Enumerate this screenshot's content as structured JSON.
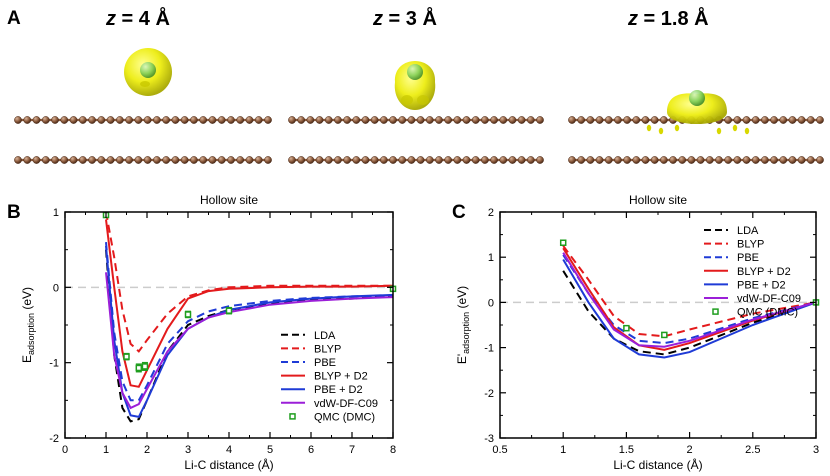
{
  "panels": {
    "a": {
      "letter": "A",
      "titles": [
        {
          "var": "z",
          "rest": " = 4 Å"
        },
        {
          "var": "z",
          "rest": " = 3 Å"
        },
        {
          "var": "z",
          "rest": " = 1.8 Å"
        }
      ]
    },
    "b": {
      "letter": "B"
    },
    "c": {
      "letter": "C"
    }
  },
  "colors": {
    "LDA": "#000000",
    "BLYP": "#e31a1c",
    "PBE": "#1f3bd6",
    "BLYP + D2": "#e31a1c",
    "PBE + D2": "#1f3bd6",
    "vdW-DF-C09": "#9b1fd8",
    "QMC": "#1f9e1f",
    "density": "#e6e600",
    "carbon": "#8b5a3c",
    "lithium": "#7ccd5a"
  },
  "chart_data": [
    {
      "type": "line",
      "title": "Hollow site",
      "xlabel": "Li-C distance (Å)",
      "ylabel_main": "E",
      "ylabel_sub": "adsorption",
      "ylabel_unit": " (eV)",
      "xlim": [
        0,
        8
      ],
      "ylim": [
        -2,
        1
      ],
      "xticks": [
        0,
        1,
        2,
        3,
        4,
        5,
        6,
        7,
        8
      ],
      "yticks": [
        -2,
        -1,
        0,
        1
      ],
      "legend": "lower-right",
      "reference_line": 0,
      "series": [
        {
          "name": "LDA",
          "dash": true,
          "x": [
            1.0,
            1.2,
            1.4,
            1.6,
            1.8,
            2.0,
            2.5,
            3.0,
            3.5,
            4.0,
            5.0,
            6.0,
            7.0,
            8.0
          ],
          "y": [
            0.5,
            -0.9,
            -1.6,
            -1.78,
            -1.75,
            -1.5,
            -0.85,
            -0.5,
            -0.38,
            -0.3,
            -0.22,
            -0.17,
            -0.15,
            -0.12
          ]
        },
        {
          "name": "BLYP",
          "dash": true,
          "x": [
            1.0,
            1.2,
            1.4,
            1.6,
            1.8,
            2.0,
            2.5,
            3.0,
            3.5,
            4.0,
            5.0,
            6.0,
            7.0,
            8.0
          ],
          "y": [
            1.0,
            0.4,
            -0.3,
            -0.75,
            -0.85,
            -0.7,
            -0.35,
            -0.12,
            -0.04,
            0.0,
            0.02,
            0.02,
            0.02,
            0.02
          ]
        },
        {
          "name": "PBE",
          "dash": true,
          "x": [
            1.0,
            1.2,
            1.4,
            1.6,
            1.8,
            2.0,
            2.5,
            3.0,
            3.5,
            4.0,
            5.0,
            6.0,
            7.0,
            8.0
          ],
          "y": [
            0.6,
            -0.6,
            -1.25,
            -1.5,
            -1.5,
            -1.3,
            -0.75,
            -0.45,
            -0.32,
            -0.25,
            -0.18,
            -0.14,
            -0.12,
            -0.11
          ]
        },
        {
          "name": "BLYP + D2",
          "dash": false,
          "x": [
            1.0,
            1.2,
            1.4,
            1.6,
            1.8,
            2.0,
            2.5,
            3.0,
            3.5,
            4.0,
            5.0,
            6.0,
            7.0,
            8.0
          ],
          "y": [
            0.9,
            0.0,
            -0.85,
            -1.3,
            -1.32,
            -1.1,
            -0.55,
            -0.15,
            -0.05,
            -0.02,
            0.0,
            0.01,
            0.01,
            0.02
          ]
        },
        {
          "name": "PBE + D2",
          "dash": false,
          "x": [
            1.0,
            1.2,
            1.4,
            1.6,
            1.8,
            2.0,
            2.5,
            3.0,
            3.5,
            4.0,
            5.0,
            6.0,
            7.0,
            8.0
          ],
          "y": [
            0.55,
            -0.7,
            -1.4,
            -1.7,
            -1.72,
            -1.5,
            -0.9,
            -0.55,
            -0.4,
            -0.3,
            -0.2,
            -0.15,
            -0.12,
            -0.1
          ]
        },
        {
          "name": "vdW-DF-C09",
          "dash": false,
          "x": [
            1.0,
            1.2,
            1.4,
            1.6,
            1.8,
            2.0,
            2.5,
            3.0,
            3.5,
            4.0,
            5.0,
            6.0,
            7.0,
            8.0
          ],
          "y": [
            0.2,
            -0.9,
            -1.4,
            -1.6,
            -1.55,
            -1.35,
            -0.85,
            -0.55,
            -0.4,
            -0.33,
            -0.23,
            -0.18,
            -0.15,
            -0.13
          ]
        }
      ],
      "points": {
        "name": "QMC (DMC)",
        "x": [
          1.0,
          1.5,
          1.8,
          1.95,
          3.0,
          4.0,
          8.0
        ],
        "y": [
          0.96,
          -0.92,
          -1.07,
          -1.05,
          -0.36,
          -0.31,
          -0.02
        ],
        "err": [
          0.03,
          0.04,
          0.05,
          0.05,
          0.04,
          0.04,
          0.02
        ]
      }
    },
    {
      "type": "line",
      "title": "Hollow site",
      "xlabel": "Li-C distance (Å)",
      "ylabel_main": "E'",
      "ylabel_sub": "adsorption",
      "ylabel_unit": " (eV)",
      "xlim": [
        0.5,
        3
      ],
      "ylim": [
        -3,
        2
      ],
      "xticks": [
        0.5,
        1,
        1.5,
        2,
        2.5,
        3
      ],
      "xtick_labels": [
        "0.5",
        "1",
        "1.5",
        "2",
        "2.5",
        "3"
      ],
      "yticks": [
        -3,
        -2,
        -1,
        0,
        1,
        2
      ],
      "legend": "upper-right",
      "reference_line": 0,
      "series": [
        {
          "name": "LDA",
          "dash": true,
          "x": [
            1.0,
            1.2,
            1.4,
            1.6,
            1.8,
            2.0,
            2.5,
            3.0
          ],
          "y": [
            0.7,
            -0.2,
            -0.8,
            -1.08,
            -1.15,
            -1.0,
            -0.45,
            0.0
          ]
        },
        {
          "name": "BLYP",
          "dash": true,
          "x": [
            1.0,
            1.2,
            1.4,
            1.6,
            1.8,
            2.0,
            2.5,
            3.0
          ],
          "y": [
            1.25,
            0.5,
            -0.3,
            -0.7,
            -0.75,
            -0.6,
            -0.25,
            0.0
          ]
        },
        {
          "name": "PBE",
          "dash": true,
          "x": [
            1.0,
            1.2,
            1.4,
            1.6,
            1.8,
            2.0,
            2.5,
            3.0
          ],
          "y": [
            1.05,
            0.2,
            -0.5,
            -0.85,
            -0.9,
            -0.8,
            -0.35,
            0.0
          ]
        },
        {
          "name": "BLYP + D2",
          "dash": false,
          "x": [
            1.0,
            1.2,
            1.4,
            1.6,
            1.8,
            2.0,
            2.5,
            3.0
          ],
          "y": [
            1.2,
            0.3,
            -0.55,
            -0.95,
            -1.05,
            -0.9,
            -0.4,
            0.0
          ]
        },
        {
          "name": "PBE + D2",
          "dash": false,
          "x": [
            1.0,
            1.2,
            1.4,
            1.6,
            1.8,
            2.0,
            2.5,
            3.0
          ],
          "y": [
            0.95,
            0.0,
            -0.8,
            -1.15,
            -1.22,
            -1.1,
            -0.5,
            0.0
          ]
        },
        {
          "name": "vdW-DF-C09",
          "dash": false,
          "x": [
            1.0,
            1.2,
            1.4,
            1.6,
            1.8,
            2.0,
            2.5,
            3.0
          ],
          "y": [
            1.1,
            0.2,
            -0.6,
            -0.95,
            -0.98,
            -0.85,
            -0.38,
            0.0
          ]
        }
      ],
      "points": {
        "name": "QMC (DMC)",
        "x": [
          1.0,
          1.5,
          1.8,
          3.0
        ],
        "y": [
          1.32,
          -0.57,
          -0.72,
          0.0
        ],
        "err": [
          0.05,
          0.05,
          0.05,
          0.02
        ]
      }
    }
  ]
}
